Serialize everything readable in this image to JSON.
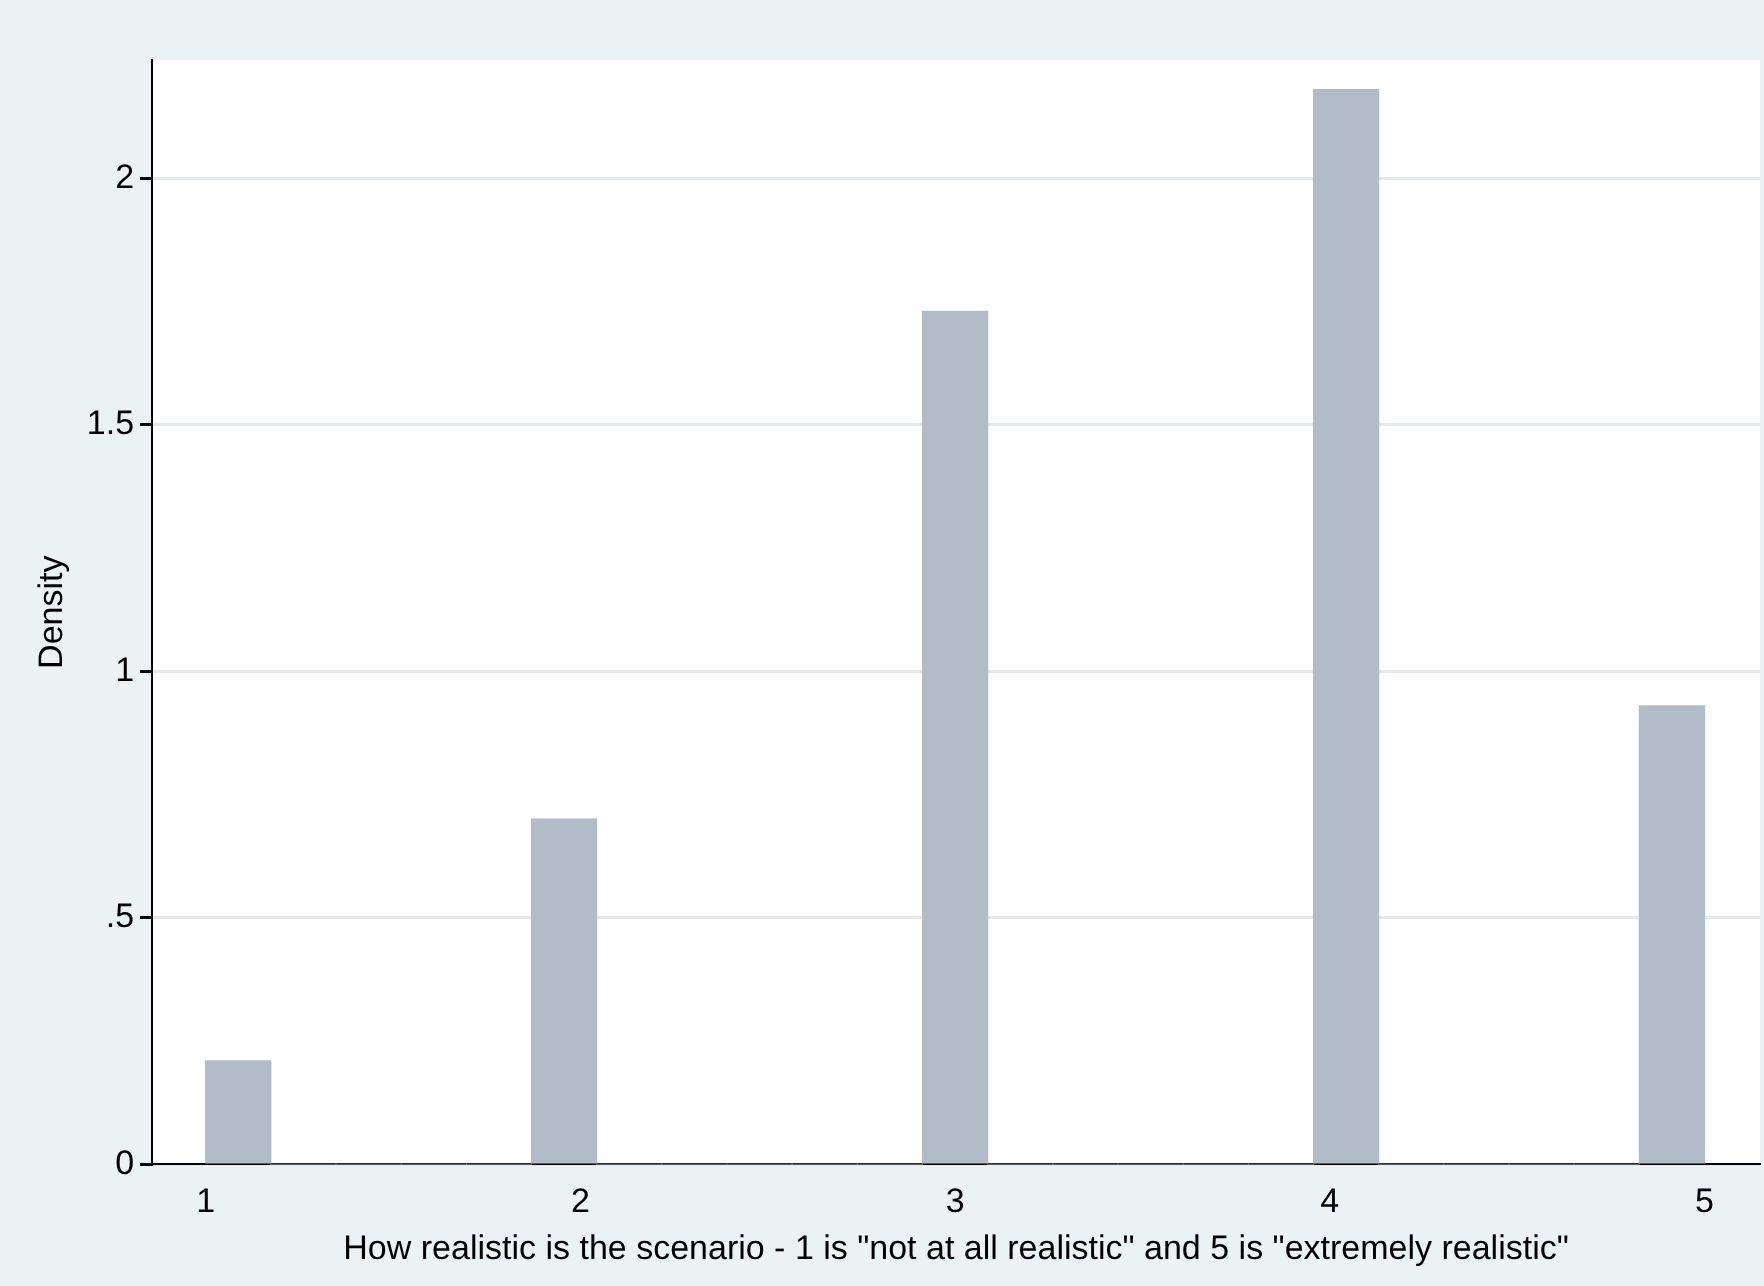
{
  "chart_data": {
    "type": "histogram",
    "xlabel": "How realistic is the scenario - 1 is \"not at all realistic\" and 5 is \"extremely realistic\"",
    "ylabel": "Density",
    "bins": [
      1,
      1.174,
      1.348,
      1.522,
      1.696,
      1.87,
      2.043,
      2.217,
      2.391,
      2.565,
      2.739,
      2.913,
      3.087,
      3.261,
      3.435,
      3.609,
      3.783,
      3.957,
      4.13,
      4.304,
      4.478,
      4.652,
      4.826,
      5
    ],
    "values": [
      0.21,
      0,
      0,
      0,
      0,
      0.7,
      0,
      0,
      0,
      0,
      0,
      1.73,
      0,
      0,
      0,
      0,
      0,
      2.18,
      0,
      0,
      0,
      0,
      0.93
    ],
    "color": "#b2bcc9",
    "xlim": [
      0.857,
      5.148
    ],
    "xticks": [
      1,
      2,
      3,
      4,
      5
    ],
    "ylim": [
      0,
      2.24
    ],
    "yticks": [
      0,
      {
        "value": 0.5,
        "label": ".5"
      },
      1,
      1.5,
      2
    ],
    "grid": "y",
    "legend": false
  }
}
